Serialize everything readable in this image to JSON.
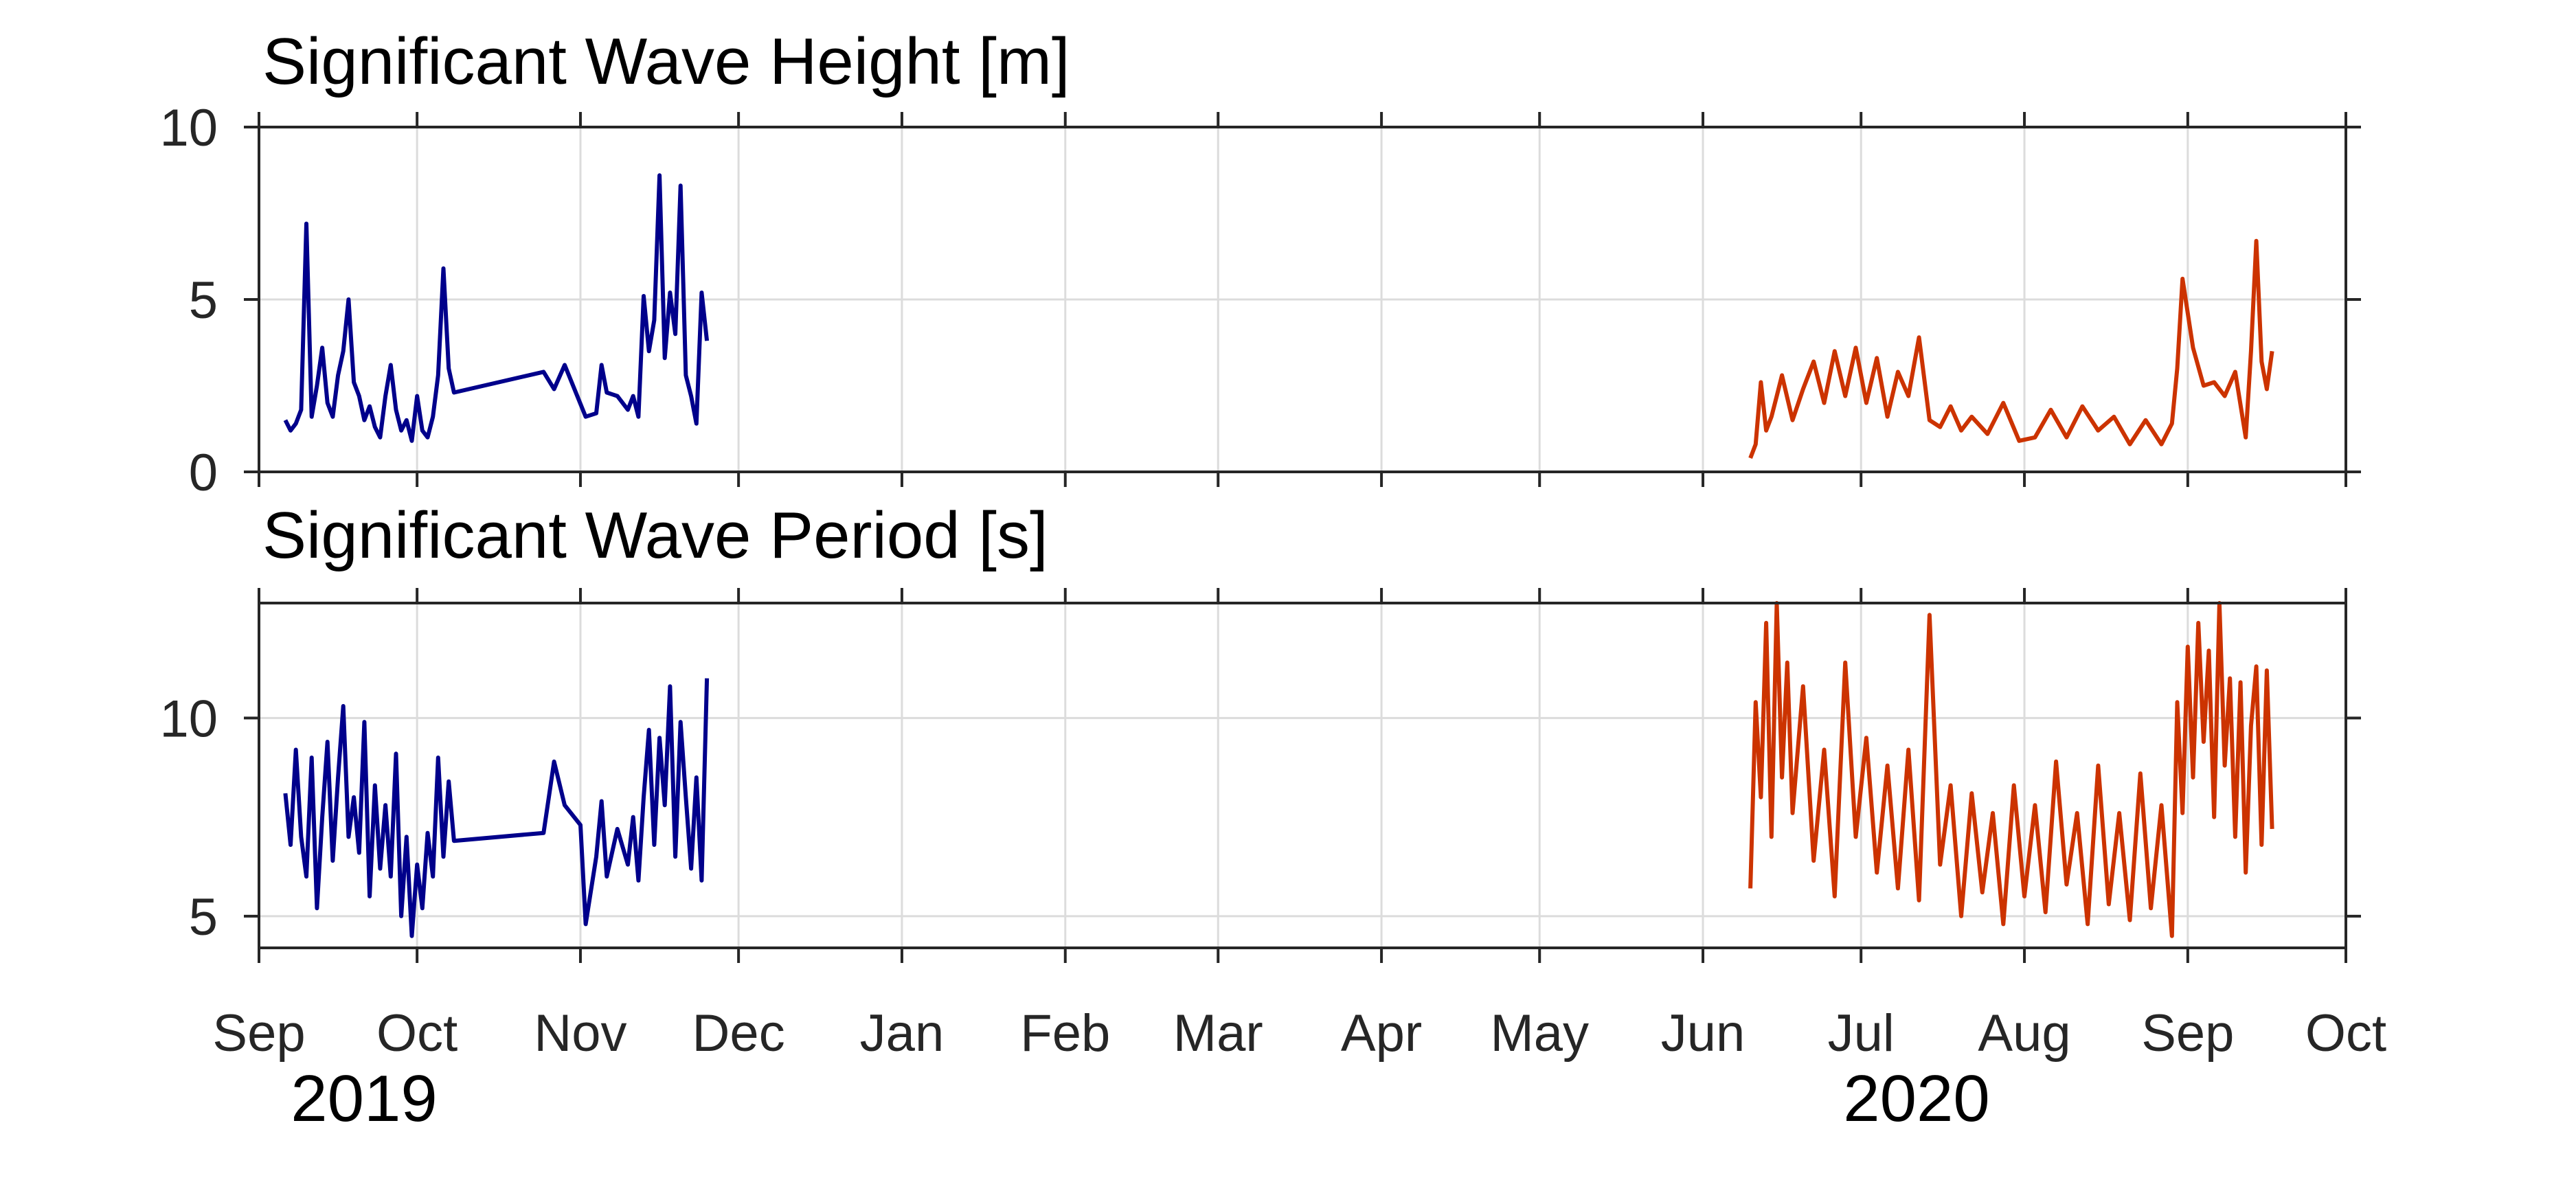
{
  "colors": {
    "series_2019": "#00008B",
    "series_2020": "#CC3300",
    "grid": "#dcdcdc",
    "axis": "#262626"
  },
  "month_labels": [
    "Sep",
    "Oct",
    "Nov",
    "Dec",
    "Jan",
    "Feb",
    "Mar",
    "Apr",
    "May",
    "Jun",
    "Jul",
    "Aug",
    "Sep",
    "Oct"
  ],
  "year_labels": [
    "2019",
    "2020"
  ],
  "chart_data": [
    {
      "type": "line",
      "title": "Significant Wave Height [m]",
      "xlabel": "",
      "ylabel": "",
      "xlim": [
        "2019-09-01",
        "2020-10-01"
      ],
      "ylim": [
        0,
        10
      ],
      "yticks": [
        0,
        5,
        10
      ],
      "grid": true,
      "series": [
        {
          "x": [
            "2019-09-06",
            "2019-09-07",
            "2019-09-08",
            "2019-09-09",
            "2019-09-10",
            "2019-09-11",
            "2019-09-12",
            "2019-09-13",
            "2019-09-14",
            "2019-09-15",
            "2019-09-16",
            "2019-09-17",
            "2019-09-18",
            "2019-09-19",
            "2019-09-20",
            "2019-09-21",
            "2019-09-22",
            "2019-09-23",
            "2019-09-24",
            "2019-09-25",
            "2019-09-26",
            "2019-09-27",
            "2019-09-28",
            "2019-09-29",
            "2019-09-30",
            "2019-10-01",
            "2019-10-02",
            "2019-10-03",
            "2019-10-04",
            "2019-10-05",
            "2019-10-06",
            "2019-10-07",
            "2019-10-08",
            "2019-10-25",
            "2019-10-27",
            "2019-10-29",
            "2019-11-02",
            "2019-11-04",
            "2019-11-05",
            "2019-11-06",
            "2019-11-08",
            "2019-11-10",
            "2019-11-11",
            "2019-11-12",
            "2019-11-13",
            "2019-11-14",
            "2019-11-15",
            "2019-11-16",
            "2019-11-17",
            "2019-11-18",
            "2019-11-19",
            "2019-11-20",
            "2019-11-21",
            "2019-11-22",
            "2019-11-23",
            "2019-11-24",
            "2019-11-25"
          ],
          "values": [
            1.5,
            1.2,
            1.4,
            1.8,
            7.2,
            1.6,
            2.5,
            3.6,
            2.0,
            1.6,
            2.8,
            3.5,
            5.0,
            2.6,
            2.2,
            1.5,
            1.9,
            1.3,
            1.0,
            2.2,
            3.1,
            1.8,
            1.2,
            1.5,
            0.9,
            2.2,
            1.2,
            1.0,
            1.6,
            2.8,
            5.9,
            3.0,
            2.3,
            2.9,
            2.4,
            3.1,
            1.6,
            1.7,
            3.1,
            2.3,
            2.2,
            1.8,
            2.2,
            1.6,
            5.1,
            3.5,
            4.4,
            8.6,
            3.3,
            5.2,
            4.0,
            8.3,
            2.8,
            2.2,
            1.4,
            5.2,
            3.8
          ]
        },
        {
          "x": [
            "2020-06-10",
            "2020-06-11",
            "2020-06-12",
            "2020-06-13",
            "2020-06-14",
            "2020-06-15",
            "2020-06-16",
            "2020-06-18",
            "2020-06-20",
            "2020-06-22",
            "2020-06-24",
            "2020-06-26",
            "2020-06-28",
            "2020-06-30",
            "2020-07-02",
            "2020-07-04",
            "2020-07-06",
            "2020-07-08",
            "2020-07-10",
            "2020-07-12",
            "2020-07-14",
            "2020-07-16",
            "2020-07-18",
            "2020-07-20",
            "2020-07-22",
            "2020-07-25",
            "2020-07-28",
            "2020-07-31",
            "2020-08-03",
            "2020-08-06",
            "2020-08-09",
            "2020-08-12",
            "2020-08-15",
            "2020-08-18",
            "2020-08-21",
            "2020-08-24",
            "2020-08-27",
            "2020-08-29",
            "2020-08-30",
            "2020-08-31",
            "2020-09-02",
            "2020-09-04",
            "2020-09-06",
            "2020-09-08",
            "2020-09-10",
            "2020-09-12",
            "2020-09-13",
            "2020-09-14",
            "2020-09-15",
            "2020-09-16",
            "2020-09-17"
          ],
          "values": [
            0.4,
            0.8,
            2.6,
            1.2,
            1.6,
            2.2,
            2.8,
            1.5,
            2.4,
            3.2,
            2.0,
            3.5,
            2.2,
            3.6,
            2.0,
            3.3,
            1.6,
            2.9,
            2.2,
            3.9,
            1.5,
            1.3,
            1.9,
            1.2,
            1.6,
            1.1,
            2.0,
            0.9,
            1.0,
            1.8,
            1.0,
            1.9,
            1.2,
            1.6,
            0.8,
            1.5,
            0.8,
            1.4,
            3.0,
            5.6,
            3.6,
            2.5,
            2.6,
            2.2,
            2.9,
            1.0,
            3.5,
            6.7,
            3.2,
            2.4,
            3.5
          ]
        }
      ]
    },
    {
      "type": "line",
      "title": "Significant Wave Period [s]",
      "xlabel": "",
      "ylabel": "",
      "xlim": [
        "2019-09-01",
        "2020-10-01"
      ],
      "ylim": [
        4.2,
        12.9
      ],
      "yticks": [
        5,
        10
      ],
      "grid": true,
      "series": [
        {
          "x": [
            "2019-09-06",
            "2019-09-07",
            "2019-09-08",
            "2019-09-09",
            "2019-09-10",
            "2019-09-11",
            "2019-09-12",
            "2019-09-13",
            "2019-09-14",
            "2019-09-15",
            "2019-09-16",
            "2019-09-17",
            "2019-09-18",
            "2019-09-19",
            "2019-09-20",
            "2019-09-21",
            "2019-09-22",
            "2019-09-23",
            "2019-09-24",
            "2019-09-25",
            "2019-09-26",
            "2019-09-27",
            "2019-09-28",
            "2019-09-29",
            "2019-09-30",
            "2019-10-01",
            "2019-10-02",
            "2019-10-03",
            "2019-10-04",
            "2019-10-05",
            "2019-10-06",
            "2019-10-07",
            "2019-10-08",
            "2019-10-25",
            "2019-10-27",
            "2019-10-29",
            "2019-11-01",
            "2019-11-02",
            "2019-11-04",
            "2019-11-05",
            "2019-11-06",
            "2019-11-08",
            "2019-11-10",
            "2019-11-11",
            "2019-11-12",
            "2019-11-13",
            "2019-11-14",
            "2019-11-15",
            "2019-11-16",
            "2019-11-17",
            "2019-11-18",
            "2019-11-19",
            "2019-11-20",
            "2019-11-21",
            "2019-11-22",
            "2019-11-23",
            "2019-11-24",
            "2019-11-25"
          ],
          "values": [
            8.1,
            6.8,
            9.2,
            7.0,
            6.0,
            9.0,
            5.2,
            7.5,
            9.4,
            6.4,
            8.5,
            10.3,
            7.0,
            8.0,
            6.6,
            9.9,
            5.5,
            8.3,
            6.2,
            7.8,
            6.0,
            9.1,
            5.0,
            7.0,
            4.5,
            6.3,
            5.2,
            7.1,
            6.0,
            9.0,
            6.5,
            8.4,
            6.9,
            7.1,
            8.9,
            7.8,
            7.3,
            4.8,
            6.5,
            7.9,
            6.0,
            7.2,
            6.3,
            7.5,
            5.9,
            8.0,
            9.7,
            6.8,
            9.5,
            7.8,
            10.8,
            6.5,
            9.9,
            8.0,
            6.2,
            8.5,
            5.9,
            11.0
          ]
        },
        {
          "x": [
            "2020-06-10",
            "2020-06-11",
            "2020-06-12",
            "2020-06-13",
            "2020-06-14",
            "2020-06-15",
            "2020-06-16",
            "2020-06-17",
            "2020-06-18",
            "2020-06-20",
            "2020-06-22",
            "2020-06-24",
            "2020-06-26",
            "2020-06-28",
            "2020-06-30",
            "2020-07-02",
            "2020-07-04",
            "2020-07-06",
            "2020-07-08",
            "2020-07-10",
            "2020-07-12",
            "2020-07-14",
            "2020-07-16",
            "2020-07-18",
            "2020-07-20",
            "2020-07-22",
            "2020-07-24",
            "2020-07-26",
            "2020-07-28",
            "2020-07-30",
            "2020-08-01",
            "2020-08-03",
            "2020-08-05",
            "2020-08-07",
            "2020-08-09",
            "2020-08-11",
            "2020-08-13",
            "2020-08-15",
            "2020-08-17",
            "2020-08-19",
            "2020-08-21",
            "2020-08-23",
            "2020-08-25",
            "2020-08-27",
            "2020-08-29",
            "2020-08-30",
            "2020-08-31",
            "2020-09-01",
            "2020-09-02",
            "2020-09-03",
            "2020-09-04",
            "2020-09-05",
            "2020-09-06",
            "2020-09-07",
            "2020-09-08",
            "2020-09-09",
            "2020-09-10",
            "2020-09-11",
            "2020-09-12",
            "2020-09-13",
            "2020-09-14",
            "2020-09-15",
            "2020-09-16",
            "2020-09-17"
          ],
          "values": [
            5.7,
            10.4,
            8.0,
            12.4,
            7.0,
            12.9,
            8.5,
            11.4,
            7.6,
            10.8,
            6.4,
            9.2,
            5.5,
            11.4,
            7.0,
            9.5,
            6.1,
            8.8,
            5.7,
            9.2,
            5.4,
            12.6,
            6.3,
            8.3,
            5.0,
            8.1,
            5.6,
            7.6,
            4.8,
            8.3,
            5.5,
            7.8,
            5.1,
            8.9,
            5.8,
            7.6,
            4.8,
            8.8,
            5.3,
            7.6,
            4.9,
            8.6,
            5.2,
            7.8,
            4.5,
            10.4,
            7.6,
            11.8,
            8.5,
            12.4,
            9.4,
            11.7,
            7.5,
            12.9,
            8.8,
            11.0,
            7.0,
            10.9,
            6.1,
            9.8,
            11.3,
            6.8,
            11.2,
            7.2
          ]
        }
      ]
    }
  ]
}
